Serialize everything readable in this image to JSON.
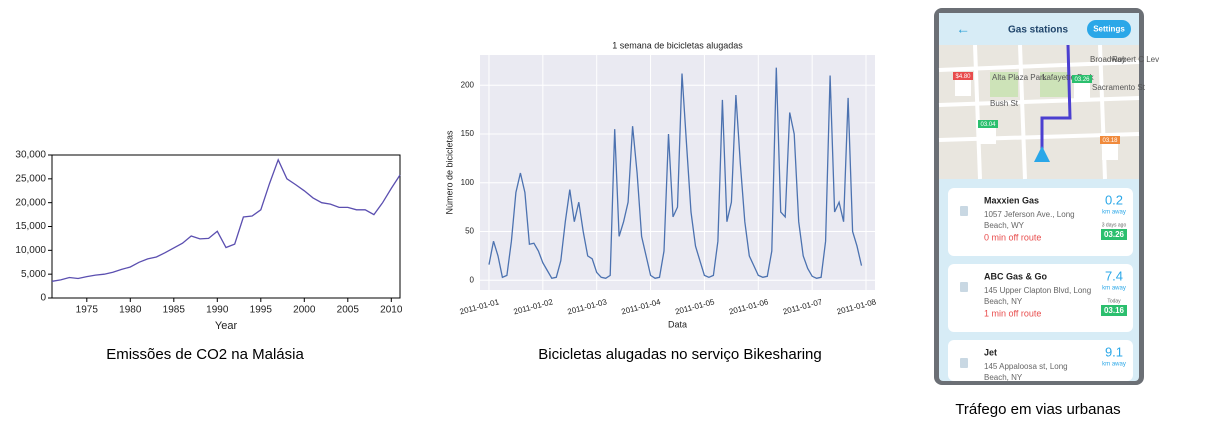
{
  "chart_data": [
    {
      "type": "line",
      "x_label": "Year",
      "x": [
        1971,
        1972,
        1973,
        1974,
        1975,
        1976,
        1977,
        1978,
        1979,
        1980,
        1981,
        1982,
        1983,
        1984,
        1985,
        1986,
        1987,
        1988,
        1989,
        1990,
        1991,
        1992,
        1993,
        1994,
        1995,
        1996,
        1997,
        1998,
        1999,
        2000,
        2001,
        2002,
        2003,
        2004,
        2005,
        2006,
        2007,
        2008,
        2009,
        2010,
        2011
      ],
      "series": [
        {
          "name": "CO2",
          "color": "#5b4fb0",
          "values": [
            3500,
            3800,
            4300,
            4100,
            4500,
            4800,
            5000,
            5400,
            6000,
            6500,
            7500,
            8200,
            8600,
            9500,
            10500,
            11500,
            13000,
            12400,
            12500,
            14000,
            10600,
            11300,
            17000,
            17200,
            18500,
            24000,
            29000,
            25000,
            23800,
            22500,
            21000,
            20000,
            19700,
            19000,
            19000,
            18500,
            18500,
            17500,
            20000,
            23000,
            25800
          ]
        }
      ],
      "xlim": [
        1971,
        2011
      ],
      "xticks": [
        1975,
        1980,
        1985,
        1990,
        1995,
        2000,
        2005,
        2010
      ],
      "ylim": [
        0,
        30000
      ],
      "yticks": [
        {
          "value": 0,
          "label": "0"
        },
        {
          "value": 5000,
          "label": "5,000"
        },
        {
          "value": 10000,
          "label": "10,000"
        },
        {
          "value": 15000,
          "label": "15,000"
        },
        {
          "value": 20000,
          "label": "20,000"
        },
        {
          "value": 25000,
          "label": "25,000"
        },
        {
          "value": 30000,
          "label": "30,000"
        }
      ],
      "grid": false,
      "frame": true
    },
    {
      "type": "line",
      "title": "1 semana de bicicletas alugadas",
      "x_label": "Data",
      "y_label": "Número de bicicletas",
      "series": [
        {
          "name": "Bicicletas",
          "color": "#4c72b0",
          "values": [
            16,
            40,
            25,
            3,
            5,
            40,
            90,
            110,
            90,
            37,
            38,
            30,
            18,
            10,
            2,
            3,
            20,
            60,
            93,
            60,
            80,
            50,
            25,
            22,
            8,
            3,
            2,
            5,
            155,
            45,
            60,
            80,
            158,
            110,
            45,
            25,
            5,
            2,
            3,
            30,
            150,
            65,
            75,
            212,
            140,
            70,
            35,
            20,
            5,
            3,
            5,
            40,
            185,
            60,
            80,
            190,
            120,
            60,
            25,
            15,
            5,
            3,
            4,
            30,
            218,
            70,
            65,
            172,
            150,
            60,
            25,
            12,
            4,
            2,
            3,
            40,
            210,
            70,
            80,
            60,
            187,
            50,
            35,
            15
          ]
        }
      ],
      "xlim": [
        -2,
        86
      ],
      "xticks": [
        {
          "value": 0,
          "label": "2011-01-01"
        },
        {
          "value": 12,
          "label": "2011-01-02"
        },
        {
          "value": 24,
          "label": "2011-01-03"
        },
        {
          "value": 36,
          "label": "2011-01-04"
        },
        {
          "value": 48,
          "label": "2011-01-05"
        },
        {
          "value": 60,
          "label": "2011-01-06"
        },
        {
          "value": 72,
          "label": "2011-01-07"
        },
        {
          "value": 84,
          "label": "2011-01-08"
        }
      ],
      "ylim": [
        -10,
        231
      ],
      "yticks": [
        0,
        50,
        100,
        150,
        200
      ],
      "grid": true,
      "background": "#eaeaf2"
    }
  ],
  "captions": [
    "Emissões de CO2 na Malásia",
    "Bicicletas alugadas no serviço Bikesharing",
    "Tráfego em vias urbanas"
  ],
  "phone": {
    "header": {
      "title": "Gas stations",
      "button": "Settings"
    },
    "map": {
      "streets": [
        "Broadway",
        "Robert C Lev",
        "Alta Plaza Park",
        "Lafayette Park",
        "Sacramento St",
        "Bush St"
      ],
      "tags": [
        "$4.80",
        "03.26",
        "03.04",
        "03.18"
      ]
    },
    "cards": [
      {
        "name": "Maxxien Gas",
        "address": [
          "1057 Jeferson Ave., Long",
          "Beach, WY"
        ],
        "route": "0 min off route",
        "distance": "0.2",
        "unit": "km away",
        "when": "3 days ago",
        "price": "03.26"
      },
      {
        "name": "ABC Gas & Go",
        "address": [
          "145 Upper Clapton Blvd, Long",
          "Beach, NY"
        ],
        "route": "1 min off route",
        "distance": "7.4",
        "unit": "km away",
        "when": "Today",
        "price": "03.16"
      },
      {
        "name": "Jet",
        "address": [
          "145 Appaloosa st, Long",
          "Beach, NY"
        ],
        "distance": "9.1",
        "unit": "km away"
      }
    ]
  }
}
